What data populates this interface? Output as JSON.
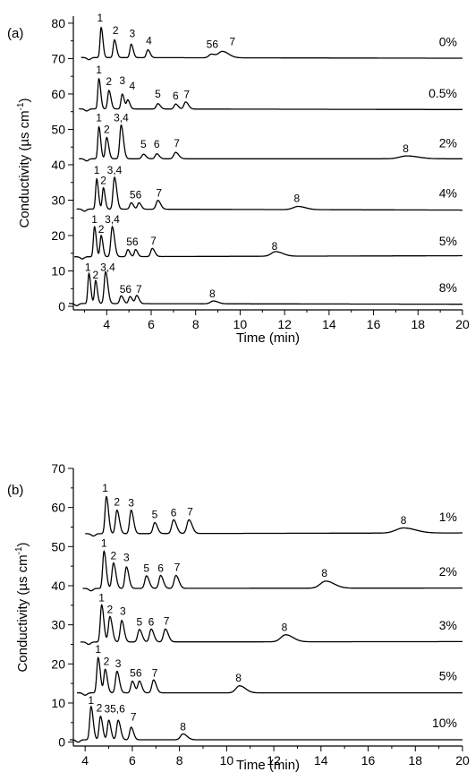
{
  "chart_data": [
    {
      "type": "line",
      "panel_label": "(a)",
      "xlabel": "Time (min)",
      "ylabel_main": "Conductivity (µs cm",
      "ylabel_sup": "-1",
      "ylabel_tail": ")",
      "xlim": [
        2.5,
        20
      ],
      "ylim": [
        -1,
        82
      ],
      "xticks": [
        4,
        6,
        8,
        10,
        12,
        14,
        16,
        18,
        20
      ],
      "yticks": [
        0,
        10,
        20,
        30,
        40,
        50,
        60,
        70,
        80
      ],
      "xtick_labels": [
        "4",
        "6",
        "8",
        "10",
        "12",
        "14",
        "16",
        "18",
        "20"
      ],
      "ytick_labels": [
        "0",
        "10",
        "20",
        "30",
        "40",
        "50",
        "60",
        "70",
        "80"
      ],
      "series": [
        {
          "label": "0%",
          "baseline": 70.3,
          "tail": 70.1,
          "peaks": [
            {
              "t": 3.75,
              "h": 8.5,
              "w": 0.07
            },
            {
              "t": 4.35,
              "h": 5.0,
              "w": 0.08
            },
            {
              "t": 5.1,
              "h": 3.8,
              "w": 0.08
            },
            {
              "t": 5.85,
              "h": 2.2,
              "w": 0.09
            },
            {
              "t": 8.7,
              "h": 1.0,
              "w": 0.15
            },
            {
              "t": 9.2,
              "h": 1.8,
              "w": 0.25
            }
          ],
          "labels": [
            {
              "t": 3.7,
              "y": 80.5,
              "text": "1"
            },
            {
              "t": 4.4,
              "y": 77.0,
              "text": "2"
            },
            {
              "t": 5.15,
              "y": 76.0,
              "text": "3"
            },
            {
              "t": 5.9,
              "y": 74.0,
              "text": "4"
            },
            {
              "t": 8.75,
              "y": 73.0,
              "text": "56"
            },
            {
              "t": 9.65,
              "y": 73.8,
              "text": "7"
            }
          ]
        },
        {
          "label": "0.5%",
          "baseline": 55.8,
          "tail": 55.6,
          "peaks": [
            {
              "t": 3.65,
              "h": 8.5,
              "w": 0.07
            },
            {
              "t": 4.1,
              "h": 5.2,
              "w": 0.08
            },
            {
              "t": 4.7,
              "h": 4.2,
              "w": 0.08
            },
            {
              "t": 4.95,
              "h": 2.5,
              "w": 0.08
            },
            {
              "t": 6.3,
              "h": 1.5,
              "w": 0.1
            },
            {
              "t": 7.1,
              "h": 1.4,
              "w": 0.1
            },
            {
              "t": 7.55,
              "h": 2.0,
              "w": 0.11
            }
          ],
          "labels": [
            {
              "t": 3.65,
              "y": 65.8,
              "text": "1"
            },
            {
              "t": 4.1,
              "y": 62.5,
              "text": "2"
            },
            {
              "t": 4.7,
              "y": 62.8,
              "text": "3"
            },
            {
              "t": 5.15,
              "y": 61.2,
              "text": "4"
            },
            {
              "t": 6.3,
              "y": 59.0,
              "text": "5"
            },
            {
              "t": 7.1,
              "y": 58.5,
              "text": "6"
            },
            {
              "t": 7.6,
              "y": 58.8,
              "text": "7"
            }
          ]
        },
        {
          "label": "2%",
          "baseline": 41.7,
          "tail": 41.7,
          "peaks": [
            {
              "t": 3.65,
              "h": 9.0,
              "w": 0.07
            },
            {
              "t": 4.0,
              "h": 6.0,
              "w": 0.08
            },
            {
              "t": 4.65,
              "h": 9.5,
              "w": 0.09
            },
            {
              "t": 5.65,
              "h": 1.3,
              "w": 0.1
            },
            {
              "t": 6.25,
              "h": 1.4,
              "w": 0.1
            },
            {
              "t": 7.1,
              "h": 1.8,
              "w": 0.12
            },
            {
              "t": 17.5,
              "h": 0.8,
              "w": 0.45
            }
          ],
          "labels": [
            {
              "t": 3.65,
              "y": 52.3,
              "text": "1"
            },
            {
              "t": 4.0,
              "y": 49.0,
              "text": "2"
            },
            {
              "t": 4.65,
              "y": 52.3,
              "text": "3,4"
            },
            {
              "t": 5.65,
              "y": 44.8,
              "text": "5"
            },
            {
              "t": 6.25,
              "y": 44.8,
              "text": "6"
            },
            {
              "t": 7.15,
              "y": 45.0,
              "text": "7"
            },
            {
              "t": 17.45,
              "y": 43.5,
              "text": "8"
            }
          ]
        },
        {
          "label": "4%",
          "baseline": 27.5,
          "tail": 27.2,
          "peaks": [
            {
              "t": 3.55,
              "h": 8.5,
              "w": 0.07
            },
            {
              "t": 3.85,
              "h": 6.0,
              "w": 0.07
            },
            {
              "t": 4.35,
              "h": 9.0,
              "w": 0.09
            },
            {
              "t": 5.1,
              "h": 1.8,
              "w": 0.09
            },
            {
              "t": 5.45,
              "h": 1.8,
              "w": 0.09
            },
            {
              "t": 6.3,
              "h": 2.5,
              "w": 0.11
            },
            {
              "t": 12.6,
              "h": 0.9,
              "w": 0.3
            }
          ],
          "labels": [
            {
              "t": 3.55,
              "y": 37.5,
              "text": "1"
            },
            {
              "t": 3.85,
              "y": 34.5,
              "text": "2"
            },
            {
              "t": 4.35,
              "y": 37.5,
              "text": "3,4"
            },
            {
              "t": 5.3,
              "y": 30.5,
              "text": "56"
            },
            {
              "t": 6.35,
              "y": 31.0,
              "text": "7"
            },
            {
              "t": 12.55,
              "y": 29.5,
              "text": "8"
            }
          ]
        },
        {
          "label": "5%",
          "baseline": 14.0,
          "tail": 14.3,
          "peaks": [
            {
              "t": 3.45,
              "h": 8.5,
              "w": 0.07
            },
            {
              "t": 3.75,
              "h": 6.0,
              "w": 0.07
            },
            {
              "t": 4.25,
              "h": 8.5,
              "w": 0.09
            },
            {
              "t": 4.95,
              "h": 2.0,
              "w": 0.08
            },
            {
              "t": 5.3,
              "h": 2.0,
              "w": 0.08
            },
            {
              "t": 6.05,
              "h": 2.3,
              "w": 0.1
            },
            {
              "t": 11.6,
              "h": 1.3,
              "w": 0.28
            }
          ],
          "labels": [
            {
              "t": 3.45,
              "y": 23.6,
              "text": "1"
            },
            {
              "t": 3.75,
              "y": 20.8,
              "text": "2"
            },
            {
              "t": 4.25,
              "y": 23.6,
              "text": "3,4"
            },
            {
              "t": 5.15,
              "y": 17.2,
              "text": "56"
            },
            {
              "t": 6.1,
              "y": 17.5,
              "text": "7"
            },
            {
              "t": 11.55,
              "y": 16.0,
              "text": "8"
            }
          ]
        },
        {
          "label": "8%",
          "baseline": 0.8,
          "tail": 0.6,
          "peaks": [
            {
              "t": 3.2,
              "h": 8.5,
              "w": 0.07
            },
            {
              "t": 3.5,
              "h": 6.5,
              "w": 0.07
            },
            {
              "t": 3.95,
              "h": 9.0,
              "w": 0.09
            },
            {
              "t": 4.65,
              "h": 2.2,
              "w": 0.09
            },
            {
              "t": 5.05,
              "h": 2.0,
              "w": 0.09
            },
            {
              "t": 5.35,
              "h": 2.3,
              "w": 0.09
            },
            {
              "t": 8.8,
              "h": 0.8,
              "w": 0.18
            }
          ],
          "labels": [
            {
              "t": 3.15,
              "y": 10.0,
              "text": "1"
            },
            {
              "t": 3.5,
              "y": 7.8,
              "text": "2"
            },
            {
              "t": 4.05,
              "y": 10.0,
              "text": "3,4"
            },
            {
              "t": 4.85,
              "y": 3.8,
              "text": "56"
            },
            {
              "t": 5.45,
              "y": 3.8,
              "text": "7"
            },
            {
              "t": 8.75,
              "y": 2.5,
              "text": "8"
            }
          ]
        }
      ]
    },
    {
      "type": "line",
      "panel_label": "(b)",
      "xlabel": "Time (min)",
      "ylabel_main": "Conductivity (µs cm",
      "ylabel_sup": "-1",
      "ylabel_tail": ")",
      "xlim": [
        3.5,
        20
      ],
      "ylim": [
        -1,
        70
      ],
      "xticks": [
        4,
        6,
        8,
        10,
        12,
        14,
        16,
        18,
        20
      ],
      "yticks": [
        0,
        10,
        20,
        30,
        40,
        50,
        60,
        70
      ],
      "xtick_labels": [
        "4",
        "6",
        "8",
        "10",
        "12",
        "14",
        "16",
        "18",
        "20"
      ],
      "ytick_labels": [
        "0",
        "10",
        "20",
        "30",
        "40",
        "50",
        "60",
        "70"
      ],
      "series": [
        {
          "label": "1%",
          "baseline": 53.3,
          "tail": 53.5,
          "peaks": [
            {
              "t": 4.9,
              "h": 9.5,
              "w": 0.08
            },
            {
              "t": 5.35,
              "h": 6.0,
              "w": 0.09
            },
            {
              "t": 5.95,
              "h": 6.0,
              "w": 0.09
            },
            {
              "t": 6.95,
              "h": 2.8,
              "w": 0.1
            },
            {
              "t": 7.75,
              "h": 3.5,
              "w": 0.11
            },
            {
              "t": 8.4,
              "h": 3.5,
              "w": 0.12
            },
            {
              "t": 17.5,
              "h": 1.3,
              "w": 0.45
            }
          ],
          "labels": [
            {
              "t": 4.85,
              "y": 64.0,
              "text": "1"
            },
            {
              "t": 5.35,
              "y": 60.5,
              "text": "2"
            },
            {
              "t": 5.95,
              "y": 60.3,
              "text": "3"
            },
            {
              "t": 6.95,
              "y": 57.3,
              "text": "5"
            },
            {
              "t": 7.75,
              "y": 57.8,
              "text": "6"
            },
            {
              "t": 8.45,
              "y": 58.0,
              "text": "7"
            },
            {
              "t": 17.5,
              "y": 55.8,
              "text": "8"
            }
          ]
        },
        {
          "label": "2%",
          "baseline": 39.3,
          "tail": 39.4,
          "peaks": [
            {
              "t": 4.8,
              "h": 9.5,
              "w": 0.08
            },
            {
              "t": 5.2,
              "h": 6.5,
              "w": 0.09
            },
            {
              "t": 5.75,
              "h": 5.5,
              "w": 0.09
            },
            {
              "t": 6.6,
              "h": 3.2,
              "w": 0.1
            },
            {
              "t": 7.2,
              "h": 3.3,
              "w": 0.1
            },
            {
              "t": 7.85,
              "h": 3.3,
              "w": 0.11
            },
            {
              "t": 14.2,
              "h": 1.8,
              "w": 0.32
            }
          ],
          "labels": [
            {
              "t": 4.8,
              "y": 50.0,
              "text": "1"
            },
            {
              "t": 5.2,
              "y": 46.7,
              "text": "2"
            },
            {
              "t": 5.75,
              "y": 46.3,
              "text": "3"
            },
            {
              "t": 6.6,
              "y": 43.5,
              "text": "5"
            },
            {
              "t": 7.2,
              "y": 43.5,
              "text": "6"
            },
            {
              "t": 7.9,
              "y": 43.8,
              "text": "7"
            },
            {
              "t": 14.15,
              "y": 42.3,
              "text": "8"
            }
          ]
        },
        {
          "label": "3%",
          "baseline": 25.6,
          "tail": 25.7,
          "peaks": [
            {
              "t": 4.7,
              "h": 9.5,
              "w": 0.08
            },
            {
              "t": 5.05,
              "h": 6.5,
              "w": 0.09
            },
            {
              "t": 5.55,
              "h": 5.5,
              "w": 0.09
            },
            {
              "t": 6.3,
              "h": 3.2,
              "w": 0.1
            },
            {
              "t": 6.8,
              "h": 3.3,
              "w": 0.1
            },
            {
              "t": 7.4,
              "h": 3.3,
              "w": 0.11
            },
            {
              "t": 12.5,
              "h": 1.8,
              "w": 0.28
            }
          ],
          "labels": [
            {
              "t": 4.7,
              "y": 36.0,
              "text": "1"
            },
            {
              "t": 5.05,
              "y": 33.0,
              "text": "2"
            },
            {
              "t": 5.6,
              "y": 32.5,
              "text": "3"
            },
            {
              "t": 6.3,
              "y": 29.8,
              "text": "5"
            },
            {
              "t": 6.8,
              "y": 29.8,
              "text": "6"
            },
            {
              "t": 7.45,
              "y": 30.0,
              "text": "7"
            },
            {
              "t": 12.45,
              "y": 28.4,
              "text": "8"
            }
          ]
        },
        {
          "label": "5%",
          "baseline": 12.6,
          "tail": 12.6,
          "peaks": [
            {
              "t": 4.55,
              "h": 9.0,
              "w": 0.08
            },
            {
              "t": 4.85,
              "h": 6.0,
              "w": 0.08
            },
            {
              "t": 5.35,
              "h": 5.5,
              "w": 0.09
            },
            {
              "t": 6.0,
              "h": 3.0,
              "w": 0.09
            },
            {
              "t": 6.3,
              "h": 3.0,
              "w": 0.09
            },
            {
              "t": 6.9,
              "h": 3.3,
              "w": 0.1
            },
            {
              "t": 10.55,
              "h": 1.8,
              "w": 0.22
            }
          ],
          "labels": [
            {
              "t": 4.55,
              "y": 22.8,
              "text": "1"
            },
            {
              "t": 4.9,
              "y": 19.7,
              "text": "2"
            },
            {
              "t": 5.4,
              "y": 19.2,
              "text": "3"
            },
            {
              "t": 6.15,
              "y": 16.8,
              "text": "56"
            },
            {
              "t": 6.95,
              "y": 16.8,
              "text": "7"
            },
            {
              "t": 10.5,
              "y": 15.5,
              "text": "8"
            }
          ]
        },
        {
          "label": "10%",
          "baseline": 0.6,
          "tail": 0.6,
          "peaks": [
            {
              "t": 4.25,
              "h": 8.5,
              "w": 0.08
            },
            {
              "t": 4.65,
              "h": 6.0,
              "w": 0.08
            },
            {
              "t": 5.0,
              "h": 5.0,
              "w": 0.08
            },
            {
              "t": 5.4,
              "h": 5.0,
              "w": 0.09
            },
            {
              "t": 5.95,
              "h": 3.2,
              "w": 0.09
            },
            {
              "t": 8.15,
              "h": 1.5,
              "w": 0.15
            }
          ],
          "labels": [
            {
              "t": 4.25,
              "y": 9.8,
              "text": "1"
            },
            {
              "t": 4.6,
              "y": 7.8,
              "text": "2"
            },
            {
              "t": 5.25,
              "y": 7.6,
              "text": "35,6"
            },
            {
              "t": 6.05,
              "y": 5.5,
              "text": "7"
            },
            {
              "t": 8.15,
              "y": 3.0,
              "text": "8"
            }
          ]
        }
      ]
    }
  ]
}
